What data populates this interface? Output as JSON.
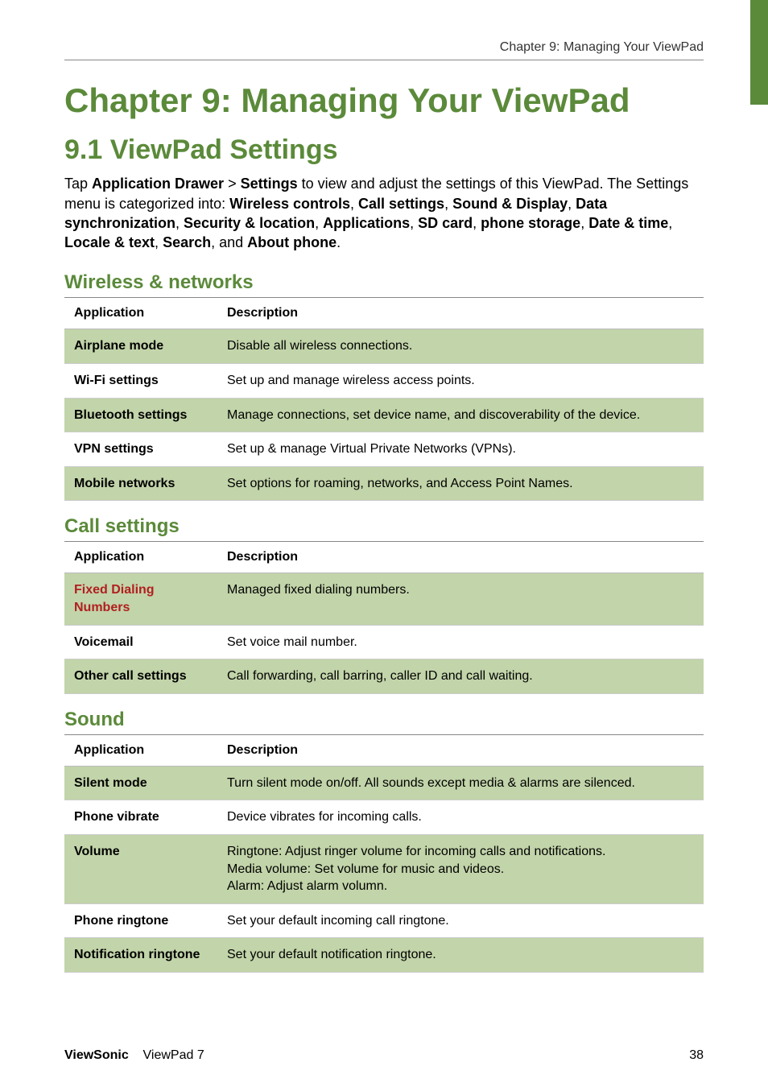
{
  "header": {
    "running_title": "Chapter 9: Managing Your ViewPad"
  },
  "chapter": {
    "title": "Chapter 9: Managing Your ViewPad"
  },
  "section": {
    "title": "9.1 ViewPad Settings",
    "intro_parts": {
      "t1": "Tap ",
      "b1": "Application Drawer",
      "t2": " > ",
      "b2": "Settings",
      "t3": " to view and adjust the settings of this ViewPad. The Settings menu is categorized into: ",
      "b3": "Wireless controls",
      "t4": ", ",
      "b4": "Call settings",
      "t5": ", ",
      "b5": "Sound & Display",
      "t6": ", ",
      "b6": "Data synchronization",
      "t7": ", ",
      "b7": "Security & location",
      "t8": ", ",
      "b8": "Applications",
      "t9": ", ",
      "b9": "SD card",
      "t10": ", ",
      "b10": "phone storage",
      "t11": ", ",
      "b11": "Date & time",
      "t12": ", ",
      "b12": "Locale & text",
      "t13": ", ",
      "b13": "Search",
      "t14": ", and ",
      "b14": "About phone",
      "t15": "."
    }
  },
  "tables": {
    "col_app": "Application",
    "col_desc": "Description",
    "wireless": {
      "title": "Wireless & networks",
      "rows": [
        {
          "label": "Airplane mode",
          "desc": "Disable all wireless connections."
        },
        {
          "label": "Wi-Fi settings",
          "desc": "Set up and manage wireless access points."
        },
        {
          "label": "Bluetooth settings",
          "desc": "Manage connections, set device name, and discoverability of the device."
        },
        {
          "label": "VPN settings",
          "desc": "Set up & manage Virtual Private Networks (VPNs)."
        },
        {
          "label": "Mobile networks",
          "desc": "Set options for roaming, networks, and Access Point Names."
        }
      ]
    },
    "call": {
      "title": "Call settings",
      "rows": [
        {
          "label": "Fixed Dialing Numbers",
          "desc": "Managed fixed dialing numbers.",
          "red": true
        },
        {
          "label": "Voicemail",
          "desc": "Set voice mail number."
        },
        {
          "label": "Other call settings",
          "desc": "Call forwarding, call barring, caller ID and call waiting."
        }
      ]
    },
    "sound": {
      "title": "Sound",
      "rows": [
        {
          "label": "Silent mode",
          "desc": "Turn silent mode on/off. All sounds except media & alarms are silenced."
        },
        {
          "label": "Phone vibrate",
          "desc": "Device vibrates for incoming calls."
        },
        {
          "label": "Volume",
          "desc": "Ringtone: Adjust ringer volume for incoming calls and notifications.\nMedia volume: Set volume for music and videos.\nAlarm: Adjust alarm volumn."
        },
        {
          "label": "Phone ringtone",
          "desc": "Set your default incoming call ringtone."
        },
        {
          "label": "Notification ringtone",
          "desc": "Set your default notification ringtone."
        }
      ]
    }
  },
  "footer": {
    "brand": "ViewSonic",
    "product": "ViewPad 7",
    "page": "38"
  },
  "style": {
    "accent_color": "#5b8a3a",
    "shade_color": "#c2d4a9",
    "red_color": "#b02020"
  }
}
